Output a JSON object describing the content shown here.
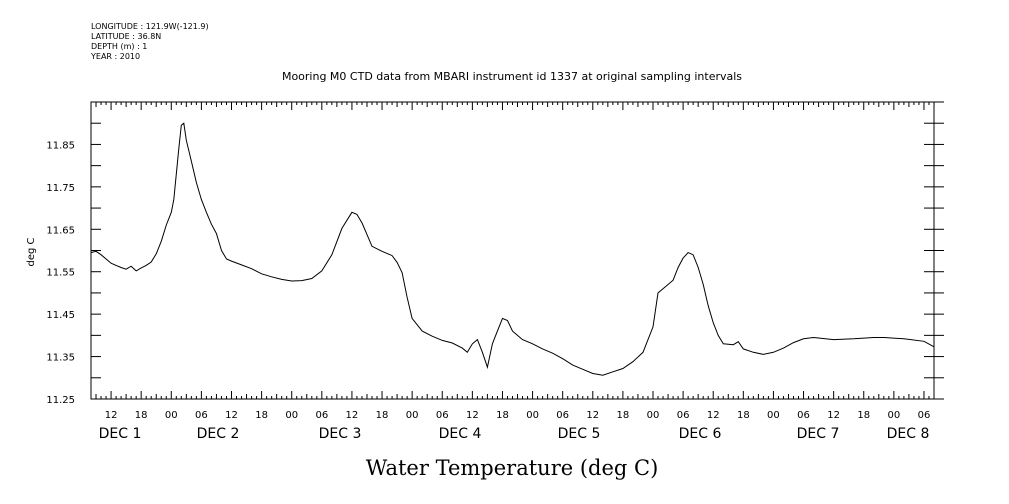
{
  "header": {
    "lines": [
      "LONGITUDE : 121.9W(-121.9)",
      "LATITUDE : 36.8N",
      "DEPTH (m) : 1",
      "YEAR : 2010"
    ]
  },
  "chart_data": {
    "type": "line",
    "title": "Mooring M0 CTD data from MBARI instrument id 1337 at original sampling intervals",
    "xlabel": "Water Temperature (deg C)",
    "ylabel": "deg C",
    "ylim": [
      11.25,
      11.95
    ],
    "xlim_hours": [
      -16,
      152
    ],
    "y_ticks": [
      "11.25",
      "11.35",
      "11.45",
      "11.55",
      "11.65",
      "11.75",
      "11.85"
    ],
    "x_hour_labels": [
      "12",
      "18",
      "00",
      "06",
      "12",
      "18",
      "00",
      "06",
      "12",
      "18",
      "00",
      "06",
      "12",
      "18",
      "00",
      "06",
      "12",
      "18",
      "00",
      "06",
      "12",
      "18",
      "00",
      "06",
      "12",
      "18",
      "00",
      "06"
    ],
    "x_day_labels": [
      "DEC  1",
      "DEC  2",
      "DEC  3",
      "DEC  4",
      "DEC  5",
      "DEC  6",
      "DEC  7",
      "DEC  8"
    ],
    "series": [
      {
        "values": [
          [
            -16,
            11.595
          ],
          [
            -15,
            11.598
          ],
          [
            -14,
            11.59
          ],
          [
            -13,
            11.58
          ],
          [
            -12,
            11.57
          ],
          [
            -11,
            11.565
          ],
          [
            -10,
            11.56
          ],
          [
            -9,
            11.556
          ],
          [
            -8,
            11.563
          ],
          [
            -7,
            11.552
          ],
          [
            -6,
            11.559
          ],
          [
            -5,
            11.565
          ],
          [
            -4,
            11.573
          ],
          [
            -3,
            11.592
          ],
          [
            -2,
            11.622
          ],
          [
            -1,
            11.66
          ],
          [
            0,
            11.69
          ],
          [
            0.5,
            11.72
          ],
          [
            1,
            11.78
          ],
          [
            1.5,
            11.84
          ],
          [
            2,
            11.895
          ],
          [
            2.5,
            11.9
          ],
          [
            3,
            11.86
          ],
          [
            4,
            11.81
          ],
          [
            5,
            11.76
          ],
          [
            6,
            11.72
          ],
          [
            7,
            11.69
          ],
          [
            8,
            11.662
          ],
          [
            9,
            11.64
          ],
          [
            10,
            11.6
          ],
          [
            11,
            11.58
          ],
          [
            12,
            11.575
          ],
          [
            14,
            11.566
          ],
          [
            16,
            11.557
          ],
          [
            18,
            11.545
          ],
          [
            20,
            11.538
          ],
          [
            22,
            11.532
          ],
          [
            24,
            11.528
          ],
          [
            26,
            11.529
          ],
          [
            28,
            11.534
          ],
          [
            30,
            11.552
          ],
          [
            32,
            11.59
          ],
          [
            34,
            11.652
          ],
          [
            36,
            11.69
          ],
          [
            37,
            11.685
          ],
          [
            38,
            11.665
          ],
          [
            40,
            11.61
          ],
          [
            42,
            11.598
          ],
          [
            44,
            11.588
          ],
          [
            45,
            11.572
          ],
          [
            46,
            11.548
          ],
          [
            47,
            11.49
          ],
          [
            48,
            11.44
          ],
          [
            50,
            11.41
          ],
          [
            52,
            11.398
          ],
          [
            54,
            11.388
          ],
          [
            56,
            11.382
          ],
          [
            58,
            11.37
          ],
          [
            59,
            11.36
          ],
          [
            60,
            11.38
          ],
          [
            61,
            11.39
          ],
          [
            62,
            11.36
          ],
          [
            63,
            11.325
          ],
          [
            64,
            11.38
          ],
          [
            65,
            11.41
          ],
          [
            66,
            11.44
          ],
          [
            67,
            11.435
          ],
          [
            68,
            11.41
          ],
          [
            69,
            11.4
          ],
          [
            70,
            11.39
          ],
          [
            72,
            11.38
          ],
          [
            74,
            11.368
          ],
          [
            76,
            11.358
          ],
          [
            78,
            11.345
          ],
          [
            80,
            11.33
          ],
          [
            82,
            11.32
          ],
          [
            84,
            11.31
          ],
          [
            86,
            11.306
          ],
          [
            88,
            11.314
          ],
          [
            90,
            11.322
          ],
          [
            92,
            11.338
          ],
          [
            94,
            11.36
          ],
          [
            96,
            11.42
          ],
          [
            97,
            11.5
          ],
          [
            98,
            11.51
          ],
          [
            100,
            11.53
          ],
          [
            101,
            11.56
          ],
          [
            102,
            11.582
          ],
          [
            103,
            11.595
          ],
          [
            104,
            11.59
          ],
          [
            105,
            11.56
          ],
          [
            106,
            11.52
          ],
          [
            107,
            11.47
          ],
          [
            108,
            11.43
          ],
          [
            109,
            11.4
          ],
          [
            110,
            11.38
          ],
          [
            112,
            11.378
          ],
          [
            113,
            11.385
          ],
          [
            114,
            11.368
          ],
          [
            116,
            11.36
          ],
          [
            118,
            11.355
          ],
          [
            120,
            11.36
          ],
          [
            122,
            11.37
          ],
          [
            124,
            11.383
          ],
          [
            126,
            11.392
          ],
          [
            128,
            11.395
          ],
          [
            132,
            11.39
          ],
          [
            136,
            11.392
          ],
          [
            140,
            11.395
          ],
          [
            142,
            11.395
          ],
          [
            146,
            11.392
          ],
          [
            150,
            11.386
          ],
          [
            152,
            11.373
          ]
        ]
      }
    ]
  }
}
